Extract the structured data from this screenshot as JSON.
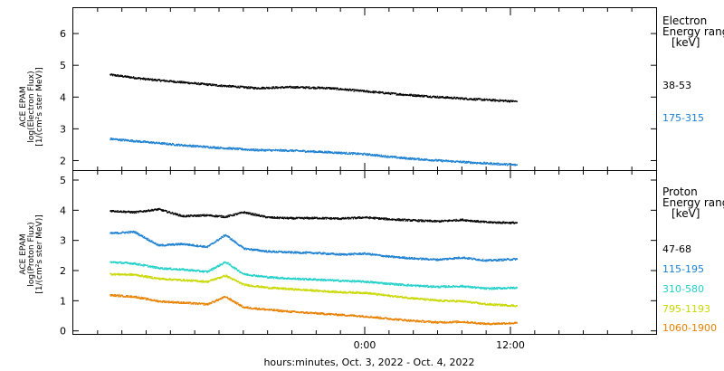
{
  "chart_data": [
    {
      "type": "scatter",
      "panel": "electron",
      "ylabel_lines": [
        "ACE EPAM",
        "log(Electron Flux)",
        "[1/(cm²s ster MeV)]"
      ],
      "ylim": [
        1.7,
        6.8
      ],
      "yticks": [
        2,
        3,
        4,
        5,
        6
      ],
      "legend_title_lines": [
        "Electron",
        "Energy range",
        "[keV]"
      ],
      "series": [
        {
          "name": "38-53",
          "color": "#000000",
          "x": [
            -21,
            -18,
            -15,
            -12,
            -9,
            -6,
            -3,
            0,
            3,
            6,
            9,
            12.5
          ],
          "y": [
            4.72,
            4.58,
            4.48,
            4.38,
            4.3,
            4.33,
            4.3,
            4.2,
            4.1,
            4.02,
            3.95,
            3.88
          ]
        },
        {
          "name": "175-315",
          "color": "#1b7fd0",
          "x": [
            -21,
            -18,
            -15,
            -12,
            -9,
            -6,
            -3,
            0,
            3,
            6,
            9,
            12.5
          ],
          "y": [
            2.7,
            2.6,
            2.5,
            2.42,
            2.35,
            2.33,
            2.28,
            2.22,
            2.1,
            2.02,
            1.95,
            1.88
          ]
        }
      ]
    },
    {
      "type": "scatter",
      "panel": "proton",
      "ylabel_lines": [
        "ACE EPAM",
        "log(Proton Flux)",
        "[1/(cm²s ster MeV)]"
      ],
      "ylim": [
        -0.1,
        5.3
      ],
      "yticks": [
        0,
        1,
        2,
        3,
        4,
        5
      ],
      "legend_title_lines": [
        "Proton",
        "Energy range",
        "[keV]"
      ],
      "series": [
        {
          "name": "47-68",
          "color": "#000000",
          "x": [
            -21,
            -19,
            -17,
            -15,
            -13,
            -11.5,
            -10,
            -8,
            -6,
            -4,
            -2,
            0,
            2,
            4,
            6,
            8,
            10,
            12.5
          ],
          "y": [
            4.0,
            3.95,
            4.05,
            3.82,
            3.85,
            3.8,
            3.95,
            3.78,
            3.75,
            3.76,
            3.74,
            3.78,
            3.72,
            3.68,
            3.65,
            3.7,
            3.62,
            3.6
          ]
        },
        {
          "name": "115-195",
          "color": "#1b7fd0",
          "x": [
            -21,
            -19,
            -17,
            -15,
            -13,
            -11.5,
            -10,
            -8,
            -6,
            -4,
            -2,
            0,
            2,
            4,
            6,
            8,
            10,
            12.5
          ],
          "y": [
            3.25,
            3.3,
            2.85,
            2.9,
            2.8,
            3.2,
            2.75,
            2.65,
            2.62,
            2.6,
            2.55,
            2.58,
            2.48,
            2.42,
            2.38,
            2.45,
            2.35,
            2.4
          ]
        },
        {
          "name": "310-580",
          "color": "#20d0c8",
          "x": [
            -21,
            -19,
            -17,
            -15,
            -13,
            -11.5,
            -10,
            -8,
            -6,
            -4,
            -2,
            0,
            2,
            4,
            6,
            8,
            10,
            12.5
          ],
          "y": [
            2.3,
            2.25,
            2.1,
            2.05,
            1.98,
            2.3,
            1.9,
            1.8,
            1.75,
            1.72,
            1.68,
            1.65,
            1.58,
            1.52,
            1.48,
            1.5,
            1.42,
            1.45
          ]
        },
        {
          "name": "795-1193",
          "color": "#c8d800",
          "x": [
            -21,
            -19,
            -17,
            -15,
            -13,
            -11.5,
            -10,
            -8,
            -6,
            -4,
            -2,
            0,
            2,
            4,
            6,
            8,
            10,
            12.5
          ],
          "y": [
            1.9,
            1.88,
            1.75,
            1.7,
            1.65,
            1.85,
            1.55,
            1.45,
            1.4,
            1.35,
            1.3,
            1.28,
            1.18,
            1.1,
            1.02,
            1.0,
            0.9,
            0.85
          ]
        },
        {
          "name": "1060-1900",
          "color": "#e88000",
          "x": [
            -21,
            -19,
            -17,
            -15,
            -13,
            -11.5,
            -10,
            -8,
            -6,
            -4,
            -2,
            0,
            2,
            4,
            6,
            8,
            10,
            12.5
          ],
          "y": [
            1.2,
            1.15,
            1.0,
            0.95,
            0.9,
            1.15,
            0.8,
            0.72,
            0.65,
            0.6,
            0.55,
            0.5,
            0.42,
            0.35,
            0.3,
            0.32,
            0.25,
            0.28
          ]
        }
      ]
    }
  ],
  "x_axis": {
    "xlim": [
      -24,
      24
    ],
    "tick_values": [
      0,
      12
    ],
    "tick_labels": [
      "0:00",
      "12:00"
    ],
    "minor_step": 2,
    "xlabel": "hours:minutes, Oct.  3, 2022 - Oct.  4, 2022"
  }
}
